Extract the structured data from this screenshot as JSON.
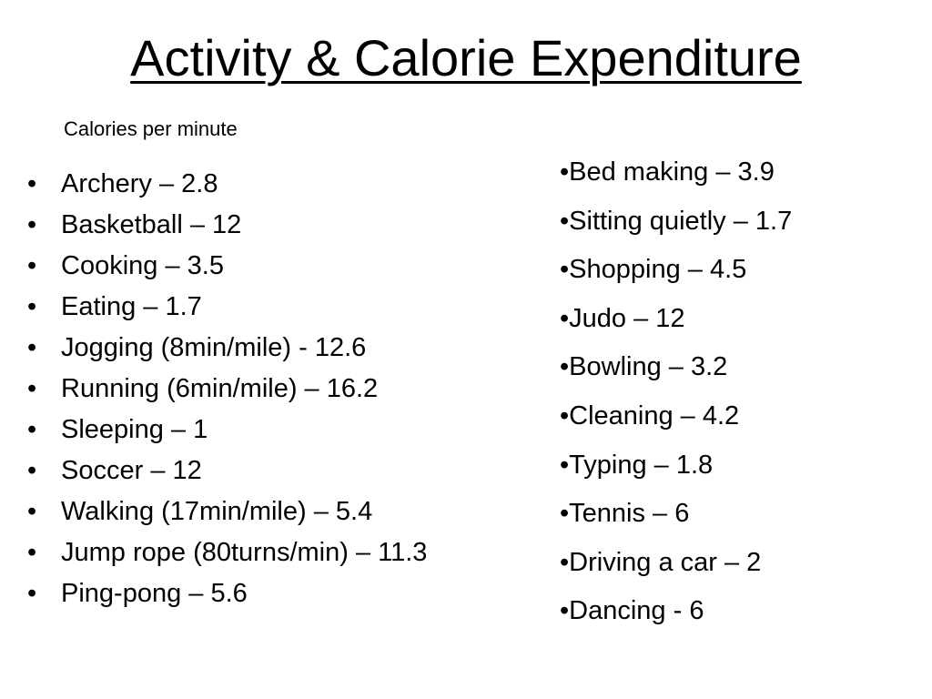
{
  "slide": {
    "title": "Activity & Calorie Expenditure",
    "subtitle": "Calories per minute"
  },
  "left_list": {
    "bullet": "•",
    "items": [
      "Archery – 2.8",
      "Basketball – 12",
      "Cooking – 3.5",
      "Eating – 1.7",
      "Jogging (8min/mile) - 12.6",
      "Running (6min/mile) – 16.2",
      "Sleeping – 1",
      "Soccer – 12",
      "Walking (17min/mile) – 5.4",
      "Jump rope (80turns/min) – 11.3",
      "Ping-pong – 5.6"
    ]
  },
  "right_list": {
    "items": [
      "•Bed making – 3.9",
      "•Sitting quietly – 1.7",
      "•Shopping – 4.5",
      "•Judo – 12",
      "•Bowling – 3.2",
      "•Cleaning – 4.2",
      "•Typing – 1.8",
      "•Tennis – 6",
      "•Driving a car – 2",
      "•Dancing - 6"
    ]
  }
}
